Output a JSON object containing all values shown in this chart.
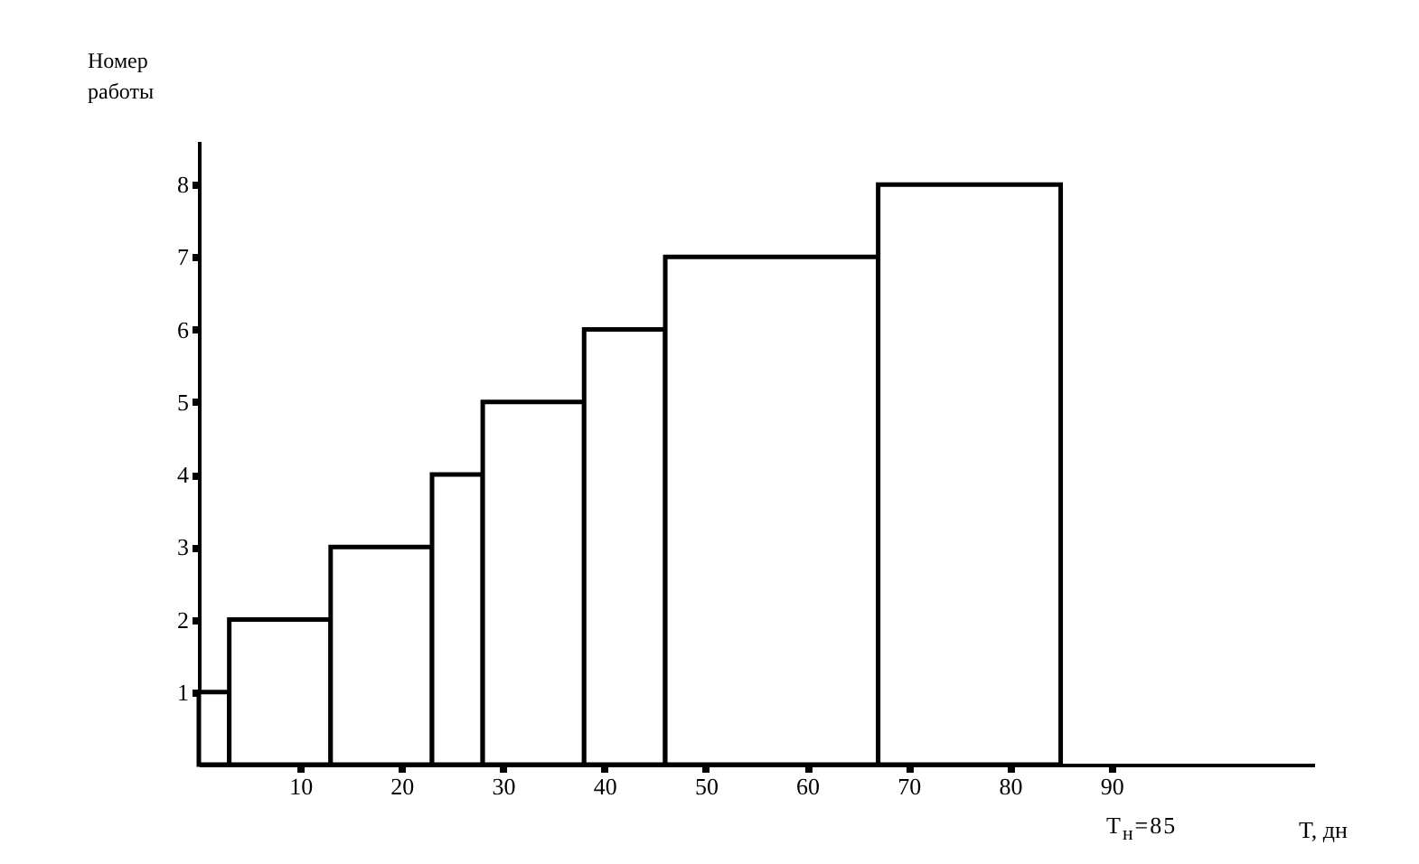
{
  "chart_data": {
    "type": "histogram",
    "xlabel": "T, дн",
    "ylabel": "Номер работы",
    "bins": [
      0,
      3,
      13,
      23,
      28,
      38,
      46,
      67,
      85
    ],
    "values": [
      1,
      2,
      3,
      4,
      5,
      6,
      7,
      8
    ],
    "color": "#ffffff",
    "xlim": [
      0,
      110
    ],
    "xticks": [
      10,
      20,
      30,
      40,
      50,
      60,
      70,
      80,
      90
    ],
    "ylim": [
      0,
      8.6
    ],
    "yticks": [
      1,
      2,
      3,
      4,
      5,
      6,
      7,
      8
    ],
    "grid": false,
    "annotations": [
      "T$_{н}$=85"
    ]
  }
}
